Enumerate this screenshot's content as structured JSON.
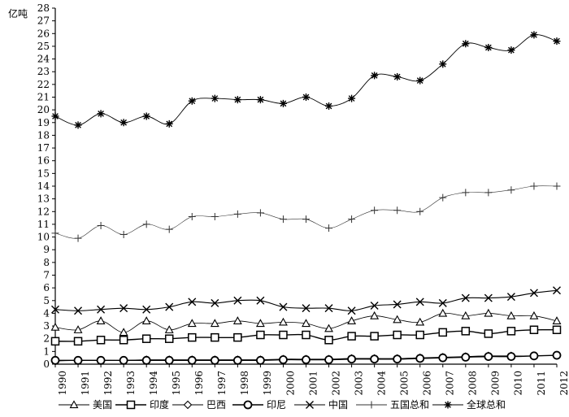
{
  "chart_data": {
    "type": "line",
    "title": "",
    "xlabel": "",
    "ylabel": "亿吨",
    "ylim": [
      0,
      28
    ],
    "yticks": [
      0,
      1,
      2,
      3,
      4,
      5,
      6,
      7,
      8,
      9,
      10,
      11,
      12,
      13,
      14,
      15,
      16,
      17,
      18,
      19,
      20,
      21,
      22,
      23,
      24,
      25,
      26,
      27,
      28
    ],
    "categories": [
      "1990",
      "1991",
      "1992",
      "1993",
      "1994",
      "1995",
      "1996",
      "1997",
      "1998",
      "1999",
      "2000",
      "2001",
      "2002",
      "2003",
      "2004",
      "2005",
      "2006",
      "2007",
      "2008",
      "2009",
      "2010",
      "2011",
      "2012"
    ],
    "grid": false,
    "legend_position": "bottom",
    "series": [
      {
        "name": "美国",
        "marker": "triangle",
        "color": "#000000",
        "stroke_width": 0.8,
        "values": [
          2.9,
          2.7,
          3.4,
          2.5,
          3.4,
          2.7,
          3.2,
          3.2,
          3.4,
          3.2,
          3.3,
          3.2,
          2.8,
          3.4,
          3.8,
          3.5,
          3.3,
          4.0,
          3.8,
          4.0,
          3.8,
          3.8,
          3.4
        ]
      },
      {
        "name": "印度",
        "marker": "square",
        "color": "#000000",
        "stroke_width": 1.4,
        "values": [
          1.8,
          1.8,
          1.9,
          1.9,
          2.0,
          2.0,
          2.1,
          2.1,
          2.1,
          2.3,
          2.3,
          2.3,
          1.9,
          2.2,
          2.2,
          2.3,
          2.3,
          2.5,
          2.6,
          2.4,
          2.6,
          2.7,
          2.7
        ]
      },
      {
        "name": "巴西",
        "marker": "diamond",
        "color": "#000000",
        "stroke_width": 0.8,
        "values": [
          0.25,
          0.3,
          0.3,
          0.3,
          0.35,
          0.35,
          0.35,
          0.35,
          0.35,
          0.35,
          0.4,
          0.4,
          0.4,
          0.45,
          0.45,
          0.45,
          0.5,
          0.55,
          0.6,
          0.65,
          0.65,
          0.65,
          0.7
        ]
      },
      {
        "name": "印尼",
        "marker": "circle",
        "color": "#000000",
        "stroke_width": 1.4,
        "values": [
          0.3,
          0.3,
          0.3,
          0.3,
          0.3,
          0.3,
          0.3,
          0.3,
          0.3,
          0.3,
          0.35,
          0.35,
          0.35,
          0.4,
          0.4,
          0.4,
          0.45,
          0.5,
          0.55,
          0.6,
          0.6,
          0.65,
          0.7
        ]
      },
      {
        "name": "中国",
        "marker": "x",
        "color": "#000000",
        "stroke_width": 1.1,
        "values": [
          4.3,
          4.2,
          4.3,
          4.4,
          4.3,
          4.5,
          4.9,
          4.8,
          5.0,
          5.0,
          4.5,
          4.4,
          4.4,
          4.2,
          4.6,
          4.7,
          4.9,
          4.8,
          5.2,
          5.2,
          5.3,
          5.6,
          5.8
        ]
      },
      {
        "name": "五国总和",
        "marker": "plus",
        "color": "#333333",
        "stroke_width": 0.6,
        "values": [
          10.3,
          9.9,
          10.9,
          10.2,
          11.0,
          10.6,
          11.6,
          11.6,
          11.8,
          11.9,
          11.4,
          11.4,
          10.7,
          11.4,
          12.1,
          12.1,
          12.0,
          13.1,
          13.5,
          13.5,
          13.7,
          14.0,
          14.0
        ]
      },
      {
        "name": "全球总和",
        "marker": "asterisk",
        "color": "#000000",
        "stroke_width": 0.9,
        "values": [
          19.5,
          18.8,
          19.7,
          19.0,
          19.5,
          18.9,
          20.7,
          20.9,
          20.8,
          20.8,
          20.5,
          21.0,
          20.3,
          20.9,
          22.7,
          22.6,
          22.3,
          23.6,
          25.2,
          24.9,
          24.7,
          25.9,
          25.4
        ]
      }
    ]
  }
}
